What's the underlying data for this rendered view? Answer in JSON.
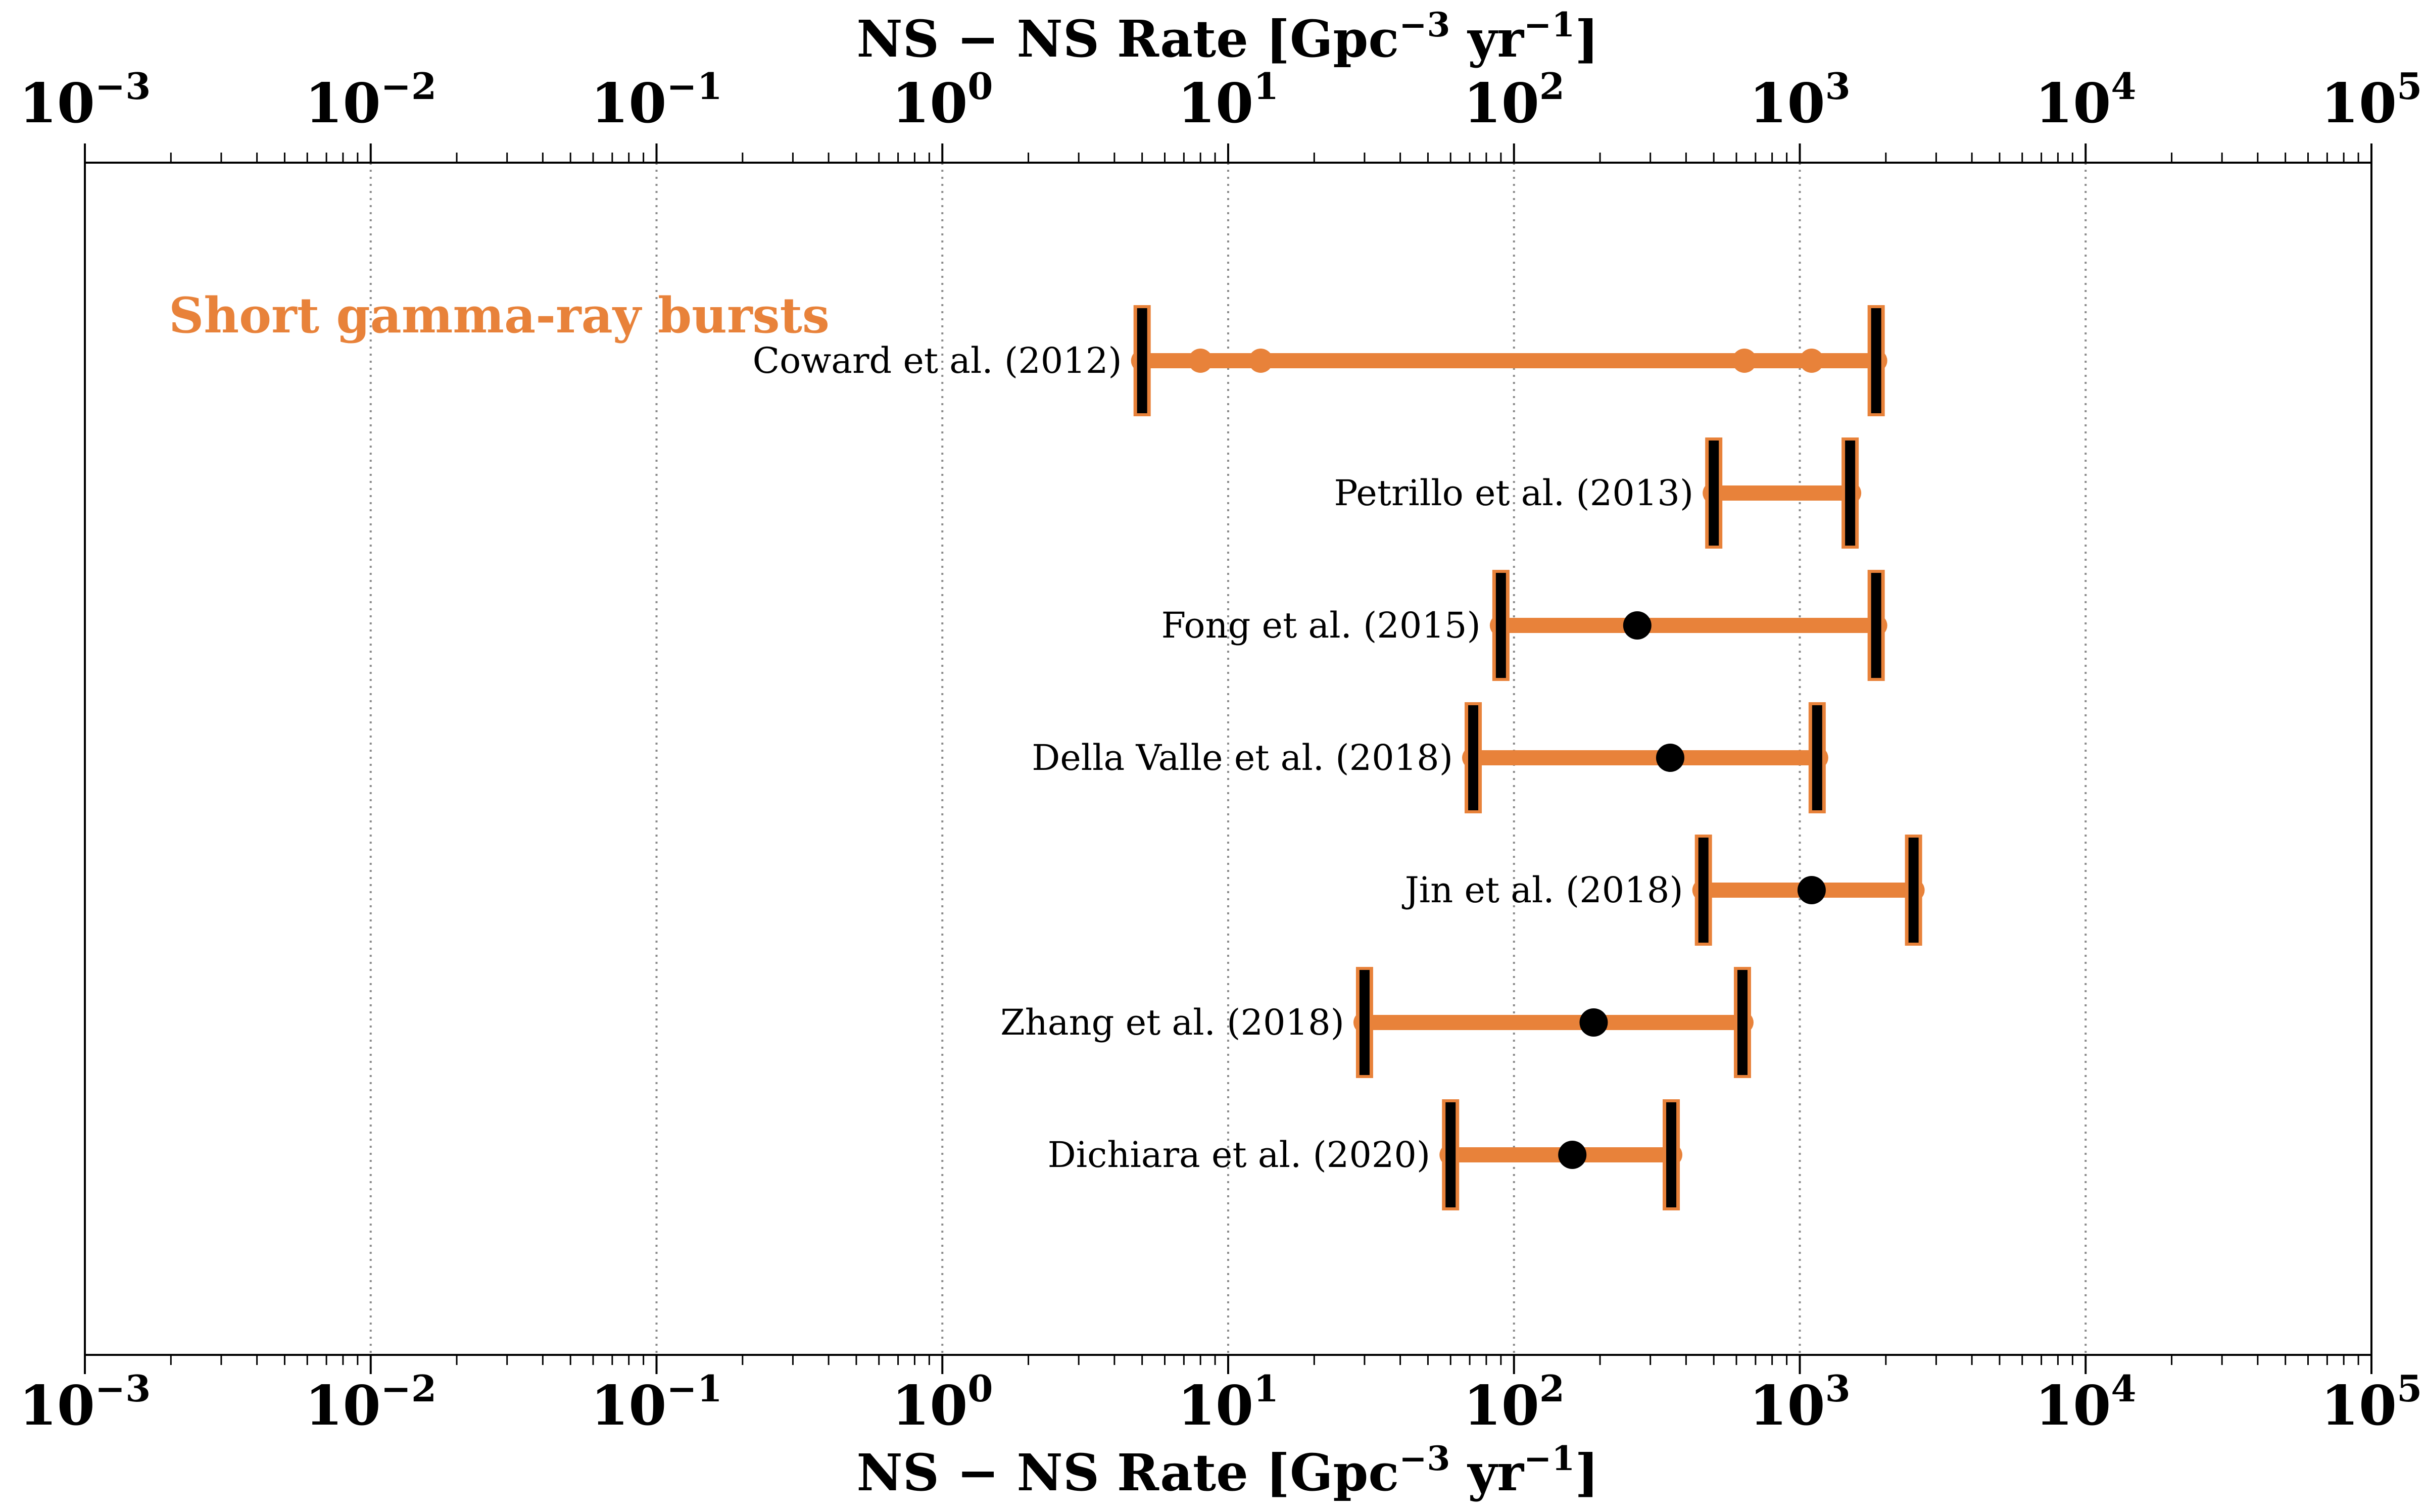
{
  "chart_data": {
    "type": "errorbar",
    "title": "",
    "xlabel": "NS − NS  Rate [Gpc−3 yr−1]",
    "xlabel_parts": {
      "main": "NS − NS  Rate [Gpc",
      "sup1": "−3",
      "mid": " yr",
      "sup2": "−1",
      "end": "]"
    },
    "xscale": "log",
    "xlim": [
      0.001,
      100000
    ],
    "tick_exponents": [
      -3,
      -2,
      -1,
      0,
      1,
      2,
      3,
      4,
      5
    ],
    "tick_labels": [
      "10−3",
      "10−2",
      "10−1",
      "100",
      "101",
      "102",
      "103",
      "104",
      "105"
    ],
    "grid": "vertical dotted at decades",
    "top_axis": true,
    "annotation": {
      "text": "Short gamma-ray bursts",
      "color": "#E8823A"
    },
    "bar_color": "#E8823A",
    "cap_color": "#000000",
    "studies": [
      {
        "label": "Coward et al. (2012)",
        "low": 5,
        "high": 1850,
        "central": null,
        "extra_points": [
          8,
          13,
          640,
          1100
        ]
      },
      {
        "label": "Petrillo et al. (2013)",
        "low": 500,
        "high": 1500,
        "central": null,
        "extra_points": []
      },
      {
        "label": "Fong et al. (2015)",
        "low": 90,
        "high": 1850,
        "central": 270,
        "extra_points": []
      },
      {
        "label": "Della Valle et al. (2018)",
        "low": 72,
        "high": 1150,
        "central": 352,
        "extra_points": []
      },
      {
        "label": "Jin et al. (2018)",
        "low": 460,
        "high": 2500,
        "central": 1100,
        "extra_points": []
      },
      {
        "label": "Zhang et al. (2018)",
        "low": 30,
        "high": 630,
        "central": 190,
        "extra_points": []
      },
      {
        "label": "Dichiara et al. (2020)",
        "low": 60,
        "high": 355,
        "central": 160,
        "extra_points": []
      }
    ]
  }
}
